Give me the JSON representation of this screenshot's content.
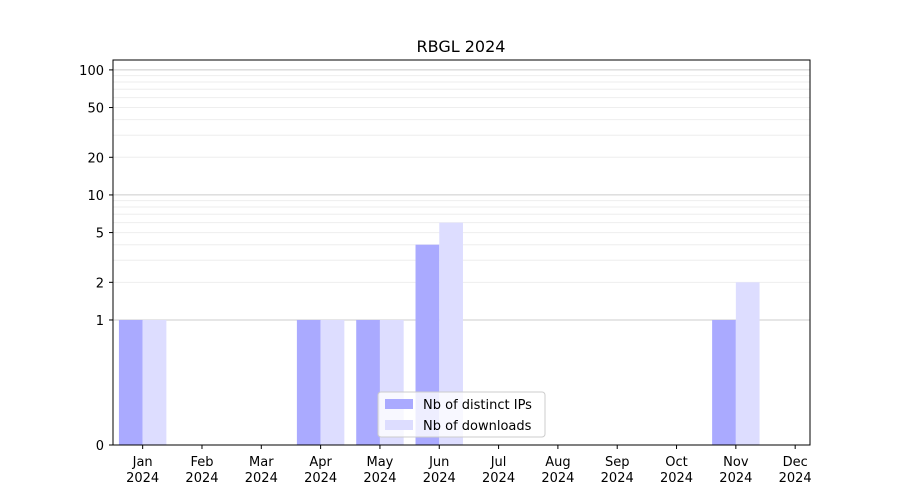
{
  "chart_data": {
    "type": "bar",
    "title": "RBGL 2024",
    "xlabel": "",
    "ylabel": "",
    "categories": [
      [
        "Jan",
        "2024"
      ],
      [
        "Feb",
        "2024"
      ],
      [
        "Mar",
        "2024"
      ],
      [
        "Apr",
        "2024"
      ],
      [
        "May",
        "2024"
      ],
      [
        "Jun",
        "2024"
      ],
      [
        "Jul",
        "2024"
      ],
      [
        "Aug",
        "2024"
      ],
      [
        "Sep",
        "2024"
      ],
      [
        "Oct",
        "2024"
      ],
      [
        "Nov",
        "2024"
      ],
      [
        "Dec",
        "2024"
      ]
    ],
    "series": [
      {
        "name": "Nb of distinct IPs",
        "color": "#aaaaff",
        "values": [
          1,
          0,
          0,
          1,
          1,
          4,
          0,
          0,
          0,
          0,
          1,
          0
        ]
      },
      {
        "name": "Nb of downloads",
        "color": "#ddddff",
        "values": [
          1,
          0,
          0,
          1,
          1,
          6,
          0,
          0,
          0,
          0,
          2,
          0
        ]
      }
    ],
    "y_scale": "symlog",
    "ylim": [
      0,
      120
    ],
    "y_ticks": [
      0,
      1,
      2,
      5,
      10,
      20,
      50,
      100
    ],
    "grid": true,
    "legend_position": "bottom-center"
  }
}
